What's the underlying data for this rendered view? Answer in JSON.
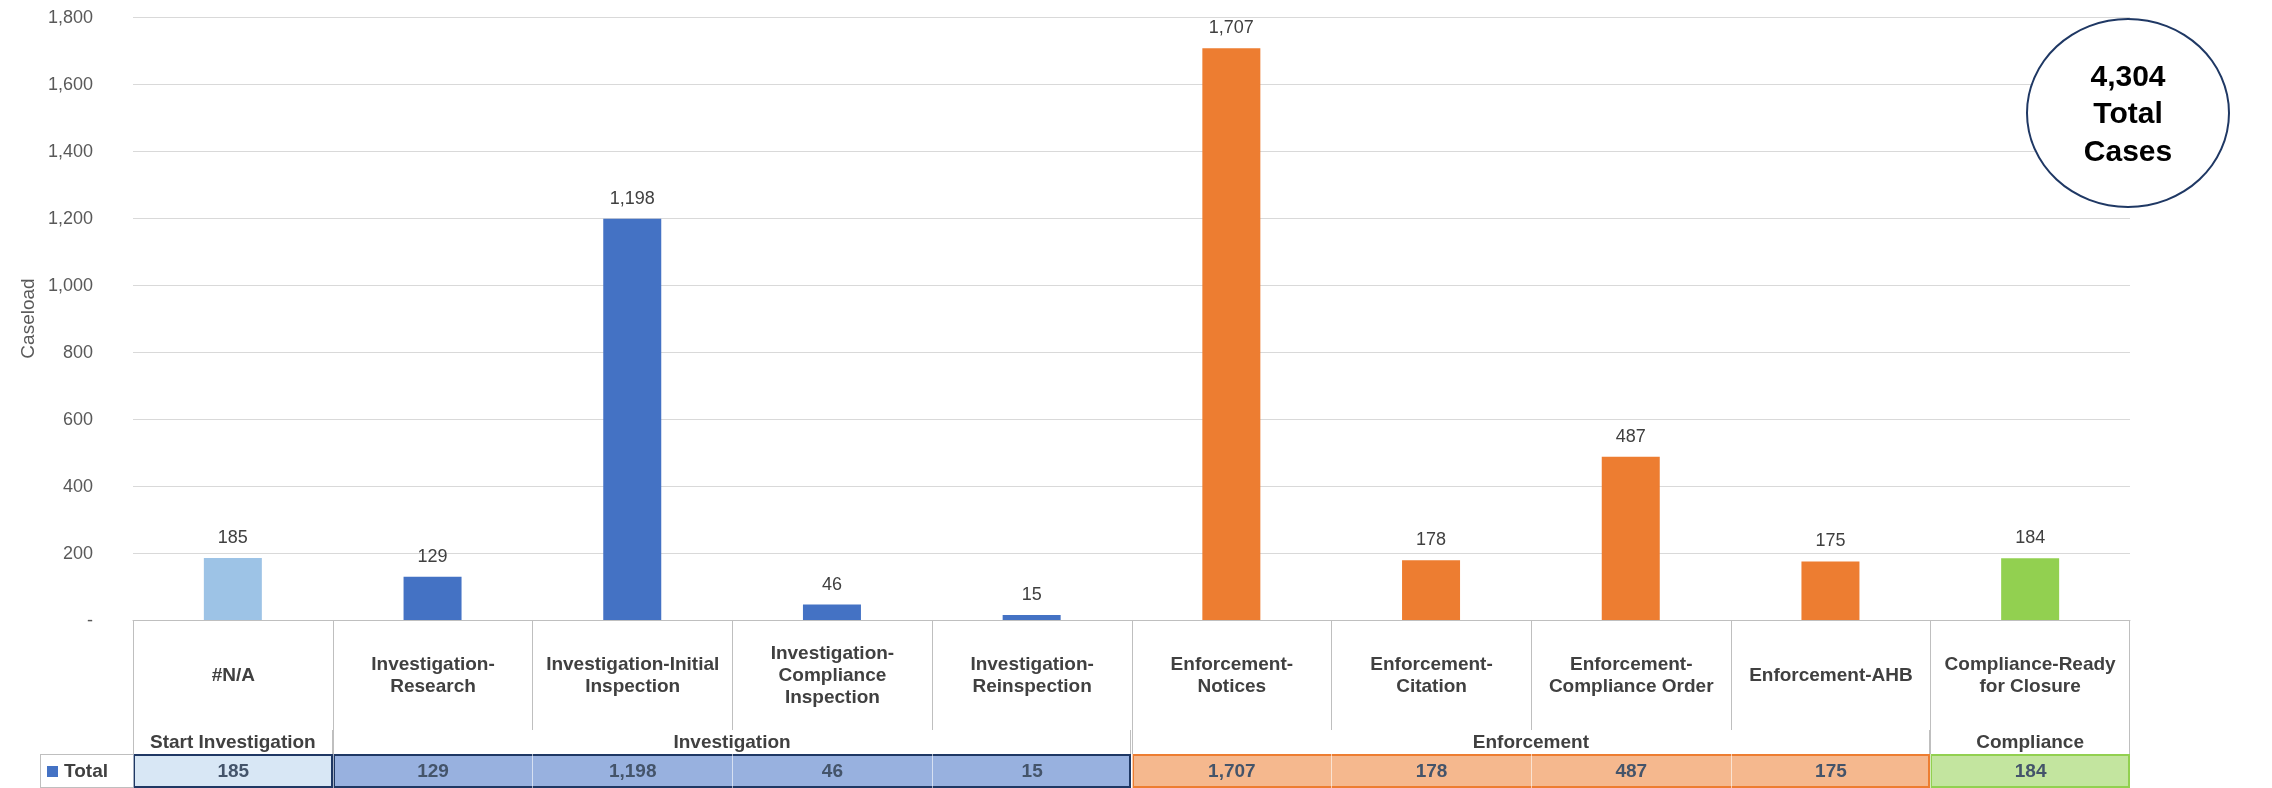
{
  "chart_data": {
    "type": "bar",
    "ylabel": "Caseload",
    "categories": [
      "#N/A",
      "Investigation-Research",
      "Investigation-Initial Inspection",
      "Investigation-Compliance Inspection",
      "Investigation-Reinspection",
      "Enforcement-Notices",
      "Enforcement-Citation",
      "Enforcement-Compliance Order",
      "Enforcement-AHB",
      "Compliance-Ready for Closure"
    ],
    "series": [
      {
        "name": "Total",
        "color": "#4472c4",
        "colors": [
          "#9dc3e6",
          "#4472c4",
          "#4472c4",
          "#4472c4",
          "#4472c4",
          "#ed7d31",
          "#ed7d31",
          "#ed7d31",
          "#ed7d31",
          "#92d050"
        ],
        "values": [
          185,
          129,
          1198,
          46,
          15,
          1707,
          178,
          487,
          175,
          184
        ],
        "value_labels": [
          "185",
          "129",
          "1,198",
          "46",
          "15",
          "1,707",
          "178",
          "487",
          "175",
          "184"
        ]
      }
    ],
    "ylim": [
      0,
      1800
    ],
    "yticks": [
      {
        "value": 0,
        "label": "-"
      },
      {
        "value": 200,
        "label": "200"
      },
      {
        "value": 400,
        "label": "400"
      },
      {
        "value": 600,
        "label": "600"
      },
      {
        "value": 800,
        "label": "800"
      },
      {
        "value": 1000,
        "label": "1,000"
      },
      {
        "value": 1200,
        "label": "1,200"
      },
      {
        "value": 1400,
        "label": "1,400"
      },
      {
        "value": 1600,
        "label": "1,600"
      },
      {
        "value": 1800,
        "label": "1,800"
      }
    ],
    "grid": "y",
    "legend": "bottom left",
    "annotations": [
      "Start Investigation",
      "Investigation",
      "Enforcement",
      "Compliance",
      "4,304 Total Cases"
    ]
  }
}
